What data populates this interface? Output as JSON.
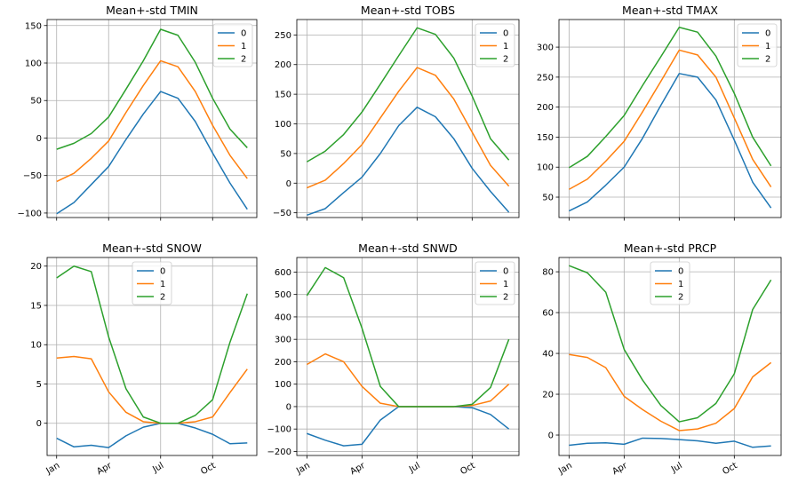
{
  "series_colors": [
    "#1f77b4",
    "#ff7f0e",
    "#2ca02c"
  ],
  "x_tick_labels": [
    "Jan",
    "Apr",
    "Jul",
    "Oct"
  ],
  "chart_data": [
    {
      "type": "line",
      "title": "Mean+-std   TMIN",
      "x": [
        0,
        1,
        2,
        3,
        4,
        5,
        6,
        7,
        8,
        9,
        10,
        11
      ],
      "ylim": [
        -106,
        158
      ],
      "yticks": [
        -100,
        -50,
        0,
        50,
        100,
        150
      ],
      "legend": "top-right",
      "grid": true,
      "series": [
        {
          "name": "0",
          "values": [
            -101,
            -86,
            -62,
            -38,
            -2,
            32,
            62,
            53,
            22,
            -20,
            -60,
            -95
          ]
        },
        {
          "name": "1",
          "values": [
            -58,
            -47,
            -27,
            -4,
            34,
            70,
            103,
            95,
            62,
            17,
            -23,
            -54
          ]
        },
        {
          "name": "2",
          "values": [
            -15,
            -7,
            6,
            28,
            65,
            103,
            145,
            137,
            101,
            53,
            12,
            -13
          ]
        }
      ]
    },
    {
      "type": "line",
      "title": "Mean+-std   TOBS",
      "x": [
        0,
        1,
        2,
        3,
        4,
        5,
        6,
        7,
        8,
        9,
        10,
        11
      ],
      "ylim": [
        -58,
        276
      ],
      "yticks": [
        -50,
        0,
        50,
        100,
        150,
        200,
        250
      ],
      "legend": "top-right",
      "grid": true,
      "series": [
        {
          "name": "0",
          "values": [
            -54,
            -43,
            -16,
            10,
            50,
            97,
            128,
            112,
            75,
            25,
            -14,
            -49
          ]
        },
        {
          "name": "1",
          "values": [
            -8,
            5,
            33,
            65,
            110,
            155,
            195,
            182,
            142,
            86,
            30,
            -5
          ]
        },
        {
          "name": "2",
          "values": [
            36,
            54,
            82,
            120,
            167,
            215,
            262,
            251,
            211,
            147,
            75,
            39
          ]
        }
      ]
    },
    {
      "type": "line",
      "title": "Mean+-std   TMAX",
      "x": [
        0,
        1,
        2,
        3,
        4,
        5,
        6,
        7,
        8,
        9,
        10,
        11
      ],
      "ylim": [
        16,
        346
      ],
      "yticks": [
        50,
        100,
        150,
        200,
        250,
        300
      ],
      "legend": "top-right",
      "grid": true,
      "series": [
        {
          "name": "0",
          "values": [
            27,
            42,
            70,
            100,
            148,
            203,
            256,
            250,
            212,
            145,
            75,
            32
          ]
        },
        {
          "name": "1",
          "values": [
            63,
            80,
            110,
            143,
            192,
            243,
            295,
            287,
            250,
            182,
            113,
            67
          ]
        },
        {
          "name": "2",
          "values": [
            99,
            118,
            151,
            186,
            236,
            284,
            333,
            325,
            285,
            223,
            150,
            102
          ]
        }
      ]
    },
    {
      "type": "line",
      "title": "Mean+-std   SNOW",
      "x": [
        0,
        1,
        2,
        3,
        4,
        5,
        6,
        7,
        8,
        9,
        10,
        11
      ],
      "ylim": [
        -4.1,
        21.1
      ],
      "yticks": [
        0,
        5,
        10,
        15,
        20
      ],
      "legend": "upper-center",
      "grid": true,
      "series": [
        {
          "name": "0",
          "values": [
            -1.9,
            -3.0,
            -2.8,
            -3.1,
            -1.6,
            -0.5,
            0.0,
            0.0,
            -0.6,
            -1.4,
            -2.6,
            -2.5
          ]
        },
        {
          "name": "1",
          "values": [
            8.3,
            8.5,
            8.2,
            4.0,
            1.4,
            0.2,
            0.0,
            0.0,
            0.2,
            0.8,
            3.9,
            6.9
          ]
        },
        {
          "name": "2",
          "values": [
            18.5,
            20.0,
            19.3,
            11.0,
            4.4,
            0.8,
            0.0,
            0.0,
            1.0,
            3.0,
            10.3,
            16.5
          ]
        }
      ]
    },
    {
      "type": "line",
      "title": "Mean+-std   SNWD",
      "x": [
        0,
        1,
        2,
        3,
        4,
        5,
        6,
        7,
        8,
        9,
        10,
        11
      ],
      "ylim": [
        -218,
        665
      ],
      "yticks": [
        -200,
        -100,
        0,
        100,
        200,
        300,
        400,
        500,
        600
      ],
      "legend": "top-right",
      "grid": true,
      "series": [
        {
          "name": "0",
          "values": [
            -120,
            -150,
            -175,
            -168,
            -60,
            0,
            0,
            0,
            0,
            -5,
            -35,
            -100
          ]
        },
        {
          "name": "1",
          "values": [
            188,
            235,
            200,
            90,
            15,
            0,
            0,
            0,
            0,
            5,
            25,
            100
          ]
        },
        {
          "name": "2",
          "values": [
            495,
            620,
            575,
            350,
            90,
            0,
            0,
            0,
            0,
            10,
            85,
            300
          ]
        }
      ]
    },
    {
      "type": "line",
      "title": "Mean+-std   PRCP",
      "x": [
        0,
        1,
        2,
        3,
        4,
        5,
        6,
        7,
        8,
        9,
        10,
        11
      ],
      "ylim": [
        -10,
        87
      ],
      "yticks": [
        0,
        20,
        40,
        60,
        80
      ],
      "legend": "upper-center",
      "grid": true,
      "series": [
        {
          "name": "0",
          "values": [
            -5.0,
            -4.0,
            -3.8,
            -4.5,
            -1.5,
            -1.7,
            -2.2,
            -2.8,
            -4.0,
            -3.0,
            -6.0,
            -5.3
          ]
        },
        {
          "name": "1",
          "values": [
            39.5,
            38.0,
            33.0,
            19.0,
            12.5,
            6.8,
            2.2,
            3.0,
            5.8,
            13.0,
            28.5,
            35.5
          ]
        },
        {
          "name": "2",
          "values": [
            83.0,
            79.5,
            70.0,
            42.0,
            27.0,
            14.5,
            6.5,
            8.5,
            15.5,
            30.0,
            61.5,
            76.0
          ]
        }
      ]
    }
  ]
}
